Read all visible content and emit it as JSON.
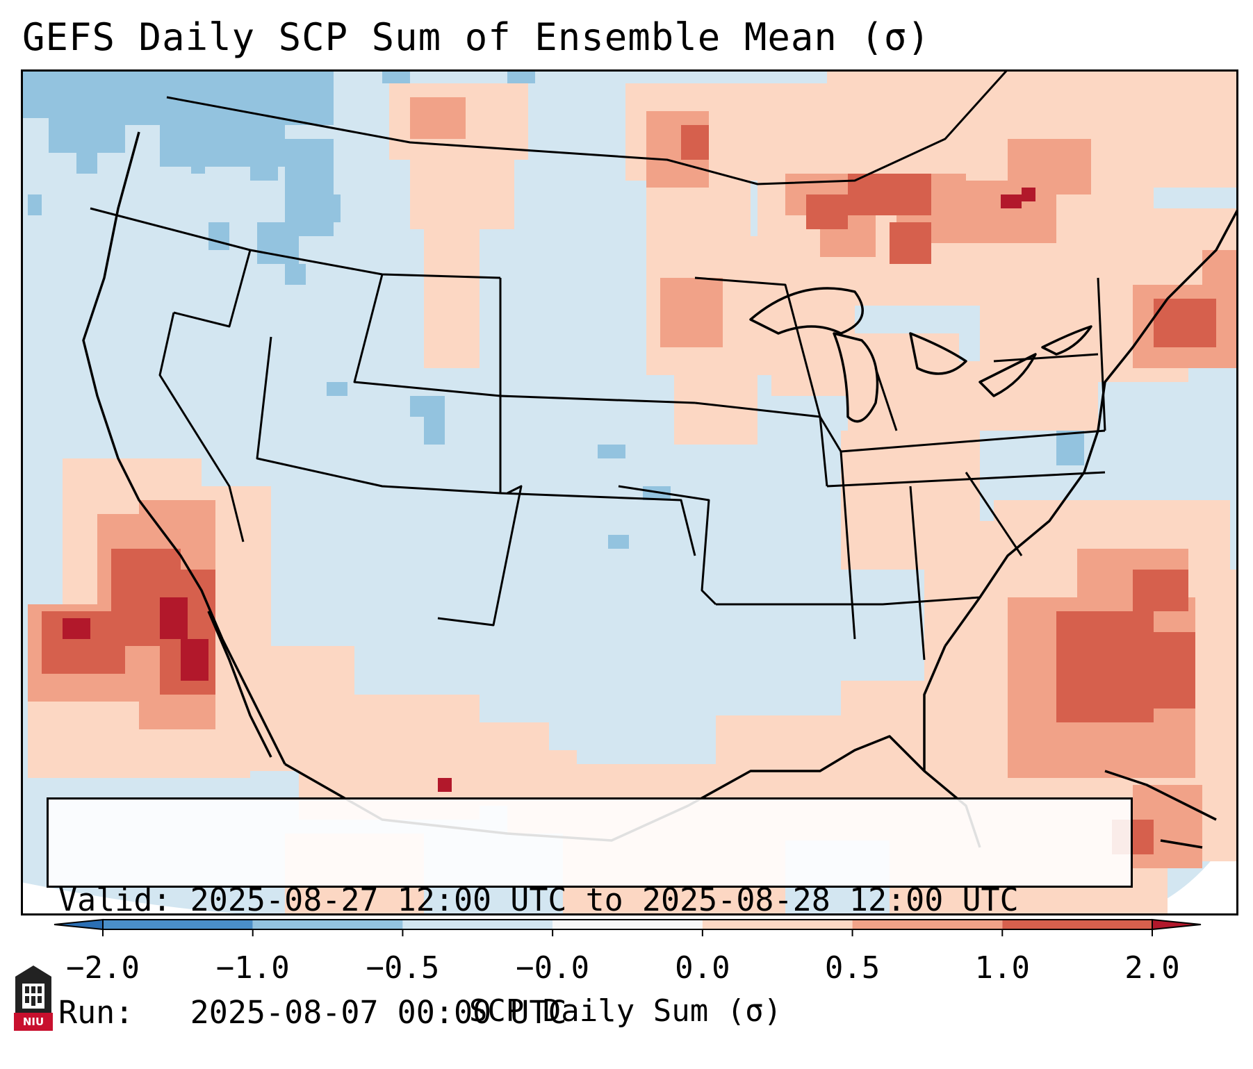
{
  "title": "GEFS Daily SCP Sum of Ensemble Mean (σ)",
  "info": {
    "valid_label": "Valid:",
    "valid_value": "2025-08-27 12:00 UTC to 2025-08-28 12:00 UTC",
    "run_label": "Run:",
    "run_value": "2025-08-07 00:00 UTC"
  },
  "colorbar": {
    "label": "SCP Daily Sum (σ)",
    "ticks": [
      "−2.0",
      "−1.0",
      "−0.5",
      "−0.0",
      "0.0",
      "0.5",
      "1.0",
      "2.0"
    ],
    "bins": [
      {
        "range": "<-2.0",
        "color": "#2b6fb4"
      },
      {
        "range": "-2.0 to -1.0",
        "color": "#4a8fc8"
      },
      {
        "range": "-1.0 to -0.5",
        "color": "#93c3df"
      },
      {
        "range": "-0.5 to -0.0",
        "color": "#d3e6f1"
      },
      {
        "range": "-0.0 to 0.0",
        "color": "#f7f7f7"
      },
      {
        "range": "0.0 to 0.5",
        "color": "#fcd7c3"
      },
      {
        "range": "0.5 to 1.0",
        "color": "#f1a288"
      },
      {
        "range": "1.0 to 2.0",
        "color": "#d6604d"
      },
      {
        "range": ">2.0",
        "color": "#b2182b"
      }
    ]
  },
  "map": {
    "region": "Continental United States",
    "background_bin": "-0.5 to -0.0",
    "features": [
      "coastlines",
      "state borders",
      "country borders"
    ]
  },
  "logo": {
    "text": "NIU",
    "color": "#c8102e"
  }
}
